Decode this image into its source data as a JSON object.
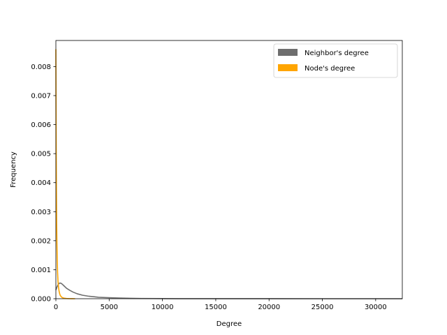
{
  "chart_data": {
    "type": "line",
    "title": "",
    "xlabel": "Degree",
    "ylabel": "Frequency",
    "xlim": [
      0,
      32500
    ],
    "ylim": [
      0,
      0.0089
    ],
    "x_ticks": [
      0,
      5000,
      10000,
      15000,
      20000,
      25000,
      30000
    ],
    "y_ticks": [
      0.0,
      0.001,
      0.002,
      0.003,
      0.004,
      0.005,
      0.006,
      0.007,
      0.008
    ],
    "x_tick_labels": [
      "0",
      "5000",
      "10000",
      "15000",
      "20000",
      "25000",
      "30000"
    ],
    "y_tick_labels": [
      "0.000",
      "0.001",
      "0.002",
      "0.003",
      "0.004",
      "0.005",
      "0.006",
      "0.007",
      "0.008"
    ],
    "grid": false,
    "legend_position": "upper right",
    "series": [
      {
        "name": "Neighbor's degree",
        "color": "#6e6e6e",
        "x": [
          0,
          100,
          200,
          300,
          400,
          500,
          600,
          800,
          1000,
          1300,
          1600,
          2000,
          2500,
          3000,
          3500,
          4000,
          5000,
          6000,
          7000,
          8000,
          10000,
          12000,
          15000,
          20000,
          25000,
          30000,
          32500
        ],
        "y": [
          0.0003,
          0.0004,
          0.00048,
          0.00053,
          0.00054,
          0.00053,
          0.0005,
          0.00043,
          0.00036,
          0.00029,
          0.00023,
          0.00017,
          0.00012,
          9e-05,
          7e-05,
          5e-05,
          3.5e-05,
          2.2e-05,
          1.4e-05,
          9e-06,
          4e-06,
          2e-06,
          1e-06,
          5e-07,
          2e-07,
          1e-07,
          0.0
        ]
      },
      {
        "name": "Node's degree",
        "color": "#ffa500",
        "x": [
          0,
          10,
          20,
          30,
          50,
          75,
          100,
          130,
          160,
          200,
          250,
          300,
          350,
          400,
          500,
          600,
          700,
          800,
          1000,
          1200,
          1500,
          1800
        ],
        "y": [
          0.0086,
          0.0075,
          0.0062,
          0.0052,
          0.0038,
          0.0026,
          0.0019,
          0.0013,
          0.0009,
          0.0006,
          0.0004,
          0.00026,
          0.00018,
          0.00012,
          7e-05,
          4e-05,
          2.5e-05,
          1.6e-05,
          8e-06,
          4e-06,
          1e-06,
          0.0
        ]
      }
    ]
  }
}
